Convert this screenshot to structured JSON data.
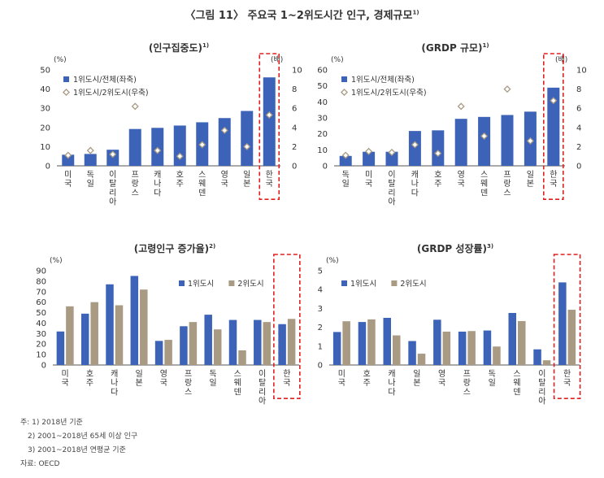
{
  "figure": {
    "title": "〈그림 11〉 주요국 1~2위도시간 인구, 경제규모",
    "title_sup": "1)"
  },
  "colors": {
    "bar_primary": "#3d63b8",
    "bar_secondary": "#a89a83",
    "marker": "#a89a83",
    "highlight": "#e02020"
  },
  "chart_data": [
    {
      "id": "pop",
      "type": "bar",
      "title": "(인구집중도)",
      "title_sup": "1)",
      "categories": [
        "미국",
        "독일",
        "이탈리아",
        "프랑스",
        "캐나다",
        "호주",
        "스웨덴",
        "영국",
        "일본",
        "한국"
      ],
      "ylabel_left": "(%)",
      "ylabel_right": "(배)",
      "ylim": [
        0,
        50
      ],
      "yticks": [
        0,
        10,
        20,
        30,
        40,
        50
      ],
      "ylim_right": [
        0,
        10
      ],
      "yticks_right": [
        0,
        2,
        4,
        6,
        8,
        10
      ],
      "series": [
        {
          "name": "1위도시/전체(좌축)",
          "kind": "bar",
          "axis": "left",
          "values": [
            5.8,
            6.2,
            8.4,
            19.2,
            19.8,
            21.0,
            22.7,
            24.9,
            28.6,
            46.1
          ]
        },
        {
          "name": "1위도시/2위도시(우축)",
          "kind": "marker",
          "axis": "right",
          "values": [
            1.1,
            1.6,
            1.2,
            6.2,
            1.6,
            1.0,
            2.2,
            3.7,
            2.0,
            5.3
          ]
        }
      ],
      "highlight": "한국",
      "legend_position": "top-left",
      "grid": false
    },
    {
      "id": "grdp",
      "type": "bar",
      "title": "(GRDP 규모)",
      "title_sup": "1)",
      "categories": [
        "독일",
        "미국",
        "이탈리아",
        "캐나다",
        "호주",
        "영국",
        "스웨덴",
        "프랑스",
        "일본",
        "한국"
      ],
      "ylabel_left": "(%)",
      "ylabel_right": "(배)",
      "ylim": [
        0,
        60
      ],
      "yticks": [
        0,
        10,
        20,
        30,
        40,
        50,
        60
      ],
      "ylim_right": [
        0,
        10
      ],
      "yticks_right": [
        0,
        2,
        4,
        6,
        8,
        10
      ],
      "series": [
        {
          "name": "1위도시/전체(좌축)",
          "kind": "bar",
          "axis": "left",
          "values": [
            6.2,
            8.8,
            8.8,
            21.8,
            22.2,
            29.4,
            30.6,
            31.8,
            33.9,
            48.9
          ]
        },
        {
          "name": "1위도시/2위도시(우축)",
          "kind": "marker",
          "axis": "right",
          "values": [
            1.1,
            1.5,
            1.4,
            2.2,
            1.3,
            6.2,
            3.1,
            8.0,
            2.6,
            6.8
          ]
        }
      ],
      "highlight": "한국",
      "legend_position": "top-left",
      "grid": false
    },
    {
      "id": "aging",
      "type": "bar",
      "title": "(고령인구 증가율)",
      "title_sup": "2)",
      "categories": [
        "미국",
        "호주",
        "캐나다",
        "일본",
        "영국",
        "프랑스",
        "독일",
        "스웨덴",
        "이탈리아",
        "한국"
      ],
      "ylabel_left": "(%)",
      "ylim": [
        0,
        90
      ],
      "yticks": [
        0,
        10,
        20,
        30,
        40,
        50,
        60,
        70,
        80,
        90
      ],
      "series": [
        {
          "name": "1위도시",
          "kind": "bar",
          "axis": "left",
          "values": [
            32,
            49,
            77,
            85,
            23,
            37,
            48,
            43,
            43,
            39
          ]
        },
        {
          "name": "2위도시",
          "kind": "bar",
          "axis": "left",
          "values": [
            56,
            60,
            57,
            72,
            24,
            41,
            34,
            14,
            41,
            44
          ]
        }
      ],
      "highlight": "한국",
      "legend_position": "top-right",
      "grid": false
    },
    {
      "id": "growth",
      "type": "bar",
      "title": "(GRDP 성장률)",
      "title_sup": "3)",
      "categories": [
        "미국",
        "호주",
        "캐나다",
        "일본",
        "영국",
        "프랑스",
        "독일",
        "스웨덴",
        "이탈리아",
        "한국"
      ],
      "ylabel_left": "(%)",
      "ylim": [
        0,
        5
      ],
      "yticks": [
        0,
        1,
        2,
        3,
        4,
        5
      ],
      "series": [
        {
          "name": "1위도시",
          "kind": "bar",
          "axis": "left",
          "values": [
            1.75,
            2.28,
            2.5,
            1.27,
            2.4,
            1.77,
            1.83,
            2.76,
            0.83,
            4.38
          ]
        },
        {
          "name": "2위도시",
          "kind": "bar",
          "axis": "left",
          "values": [
            2.32,
            2.42,
            1.57,
            0.6,
            1.77,
            1.8,
            0.98,
            2.33,
            0.25,
            2.93
          ]
        }
      ],
      "highlight": "한국",
      "legend_position": "top-left",
      "grid": false
    }
  ],
  "notes": {
    "lines": [
      "주: 1) 2018년 기준",
      "2) 2001~2018년 65세 이상 인구",
      "3) 2001~2018년 연평균 기준"
    ],
    "source": "자료: OECD"
  }
}
